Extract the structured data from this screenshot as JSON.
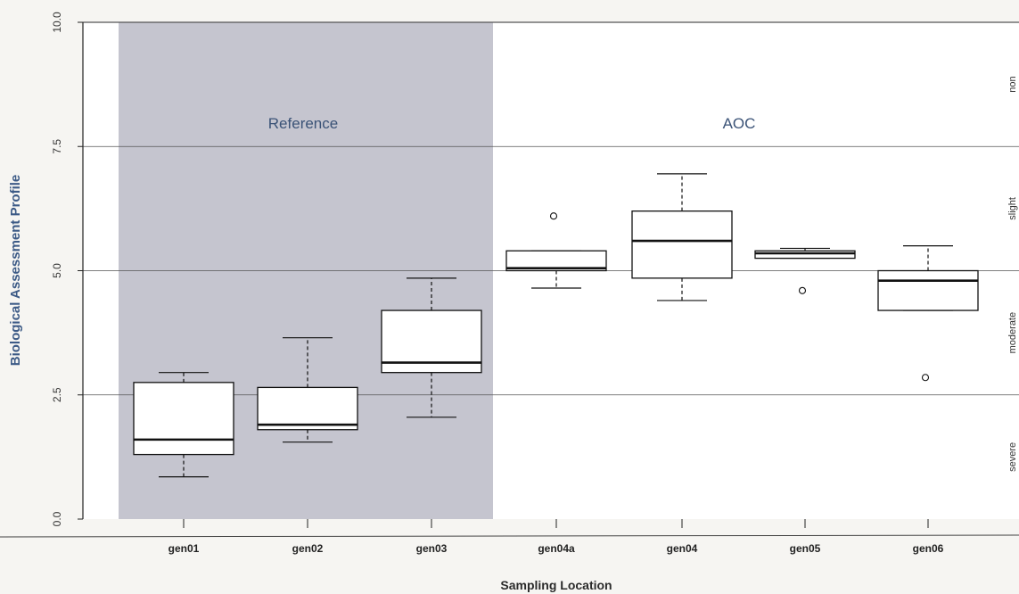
{
  "chart_data": {
    "type": "box",
    "xlabel": "Sampling Location",
    "ylabel": "Biological Assessment Profile",
    "ylim": [
      0,
      10
    ],
    "yticks": [
      "0.0",
      "2.5",
      "5.0",
      "7.5",
      "10.0"
    ],
    "grid_lines_y": [
      2.5,
      5.0,
      7.5,
      10.0
    ],
    "categories": [
      "gen01",
      "gen02",
      "gen03",
      "gen04a",
      "gen04",
      "gen05",
      "gen06"
    ],
    "boxes": [
      {
        "category": "gen01",
        "whisker_low": 0.85,
        "q1": 1.3,
        "median": 1.6,
        "q3": 2.75,
        "whisker_high": 2.95,
        "outliers": []
      },
      {
        "category": "gen02",
        "whisker_low": 1.55,
        "q1": 1.8,
        "median": 1.9,
        "q3": 2.65,
        "whisker_high": 3.65,
        "outliers": []
      },
      {
        "category": "gen03",
        "whisker_low": 2.05,
        "q1": 2.95,
        "median": 3.15,
        "q3": 4.2,
        "whisker_high": 4.85,
        "outliers": []
      },
      {
        "category": "gen04a",
        "whisker_low": 4.65,
        "q1": 5.0,
        "median": 5.05,
        "q3": 5.4,
        "whisker_high": 5.4,
        "outliers": [
          6.1
        ]
      },
      {
        "category": "gen04",
        "whisker_low": 4.4,
        "q1": 4.85,
        "median": 5.6,
        "q3": 6.2,
        "whisker_high": 6.95,
        "outliers": []
      },
      {
        "category": "gen05",
        "whisker_low": 5.25,
        "q1": 5.25,
        "median": 5.35,
        "q3": 5.4,
        "whisker_high": 5.45,
        "outliers": [
          4.6
        ]
      },
      {
        "category": "gen06",
        "whisker_low": 4.2,
        "q1": 4.2,
        "median": 4.8,
        "q3": 5.0,
        "whisker_high": 5.5,
        "outliers": [
          2.85
        ]
      }
    ],
    "regions": [
      {
        "label": "Reference",
        "from": "gen01",
        "to": "gen03",
        "color": "#c5c5cf"
      },
      {
        "label": "AOC",
        "from": "gen04a",
        "to": "gen06",
        "color": "#ffffff"
      }
    ],
    "condition_labels": [
      {
        "label": "non",
        "y": 8.75
      },
      {
        "label": "slight",
        "y": 6.25
      },
      {
        "label": "moderate",
        "y": 3.75
      },
      {
        "label": "severe",
        "y": 1.25
      }
    ]
  }
}
